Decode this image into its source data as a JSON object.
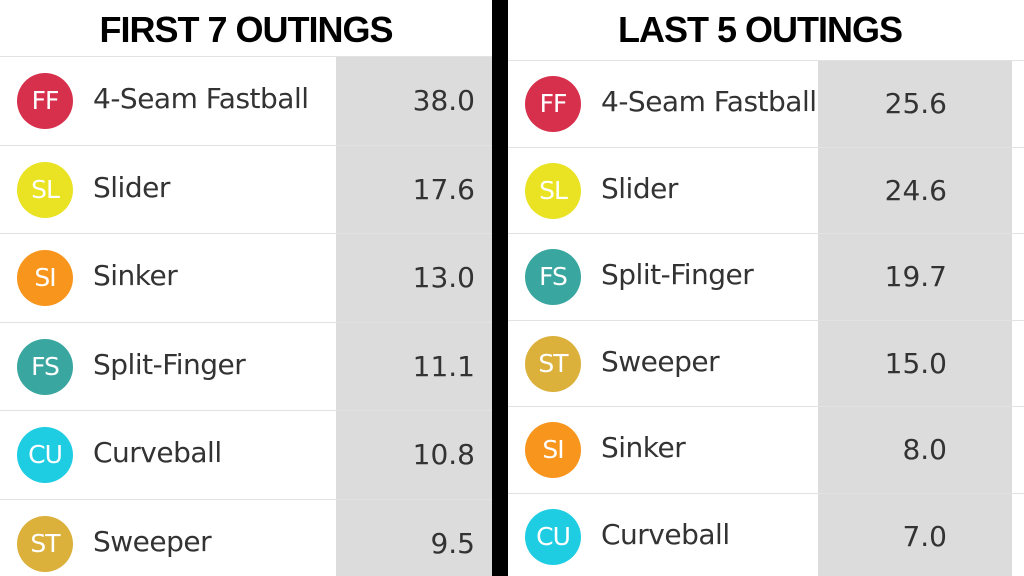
{
  "panels": [
    {
      "title": "FIRST 7 OUTINGS",
      "rows": [
        {
          "code": "FF",
          "name": "4-Seam Fastball",
          "value": "38.0",
          "color": "#d7304c"
        },
        {
          "code": "SL",
          "name": "Slider",
          "value": "17.6",
          "color": "#e9e324"
        },
        {
          "code": "SI",
          "name": "Sinker",
          "value": "13.0",
          "color": "#f7951d"
        },
        {
          "code": "FS",
          "name": "Split-Finger",
          "value": "11.1",
          "color": "#3aa6a0"
        },
        {
          "code": "CU",
          "name": "Curveball",
          "value": "10.8",
          "color": "#1fcde3"
        },
        {
          "code": "ST",
          "name": "Sweeper",
          "value": "9.5",
          "color": "#dbb13c"
        }
      ]
    },
    {
      "title": "LAST 5 OUTINGS",
      "rows": [
        {
          "code": "FF",
          "name": "4-Seam Fastball",
          "value": "25.6",
          "color": "#d7304c"
        },
        {
          "code": "SL",
          "name": "Slider",
          "value": "24.6",
          "color": "#e9e324"
        },
        {
          "code": "FS",
          "name": "Split-Finger",
          "value": "19.7",
          "color": "#3aa6a0"
        },
        {
          "code": "ST",
          "name": "Sweeper",
          "value": "15.0",
          "color": "#dbb13c"
        },
        {
          "code": "SI",
          "name": "Sinker",
          "value": "8.0",
          "color": "#f7951d"
        },
        {
          "code": "CU",
          "name": "Curveball",
          "value": "7.0",
          "color": "#1fcde3"
        }
      ]
    }
  ]
}
